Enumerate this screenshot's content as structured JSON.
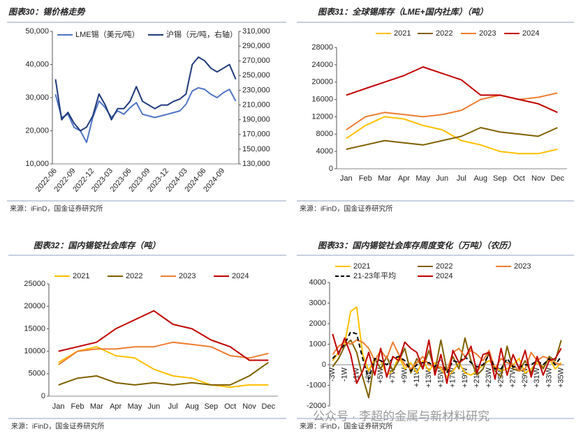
{
  "chart_data": [
    {
      "type": "line",
      "title": "图表30：锡价格走势",
      "source": "来源：iFinD，国金证券研究所",
      "legend": "top",
      "grid": false,
      "categories": [
        "2022-06",
        null,
        null,
        "2022-09",
        null,
        null,
        "2022-12",
        null,
        null,
        "2023-03",
        null,
        null,
        "2023-06",
        null,
        null,
        "2023-09",
        null,
        null,
        "2023-12",
        null,
        null,
        "2024-03",
        null,
        null,
        "2024-06",
        null,
        null,
        "2024-09",
        null,
        null
      ],
      "ylim": [
        10000,
        50000
      ],
      "yticks": [
        {
          "value": 10000,
          "label": "10,000"
        },
        {
          "value": 20000,
          "label": "20,000"
        },
        {
          "value": 30000,
          "label": "30,000"
        },
        {
          "value": 40000,
          "label": "40,000"
        },
        {
          "value": 50000,
          "label": "50,000"
        }
      ],
      "y2lim": [
        130000,
        310000
      ],
      "y2ticks": [
        {
          "value": 130000,
          "label": "130,000"
        },
        {
          "value": 150000,
          "label": "150,000"
        },
        {
          "value": 170000,
          "label": "170,000"
        },
        {
          "value": 190000,
          "label": "190,000"
        },
        {
          "value": 210000,
          "label": "210,000"
        },
        {
          "value": 230000,
          "label": "230,000"
        },
        {
          "value": 250000,
          "label": "250,000"
        },
        {
          "value": 270000,
          "label": "270,000"
        },
        {
          "value": 290000,
          "label": "290,000"
        },
        {
          "value": 310000,
          "label": "310,000"
        }
      ],
      "series": [
        {
          "name": "LME锡（美元/吨）",
          "color": "#4f74c4",
          "values": [
            31000,
            24000,
            25000,
            21000,
            20000,
            16500,
            24000,
            29000,
            27000,
            24000,
            26000,
            25000,
            27000,
            28500,
            25000,
            24500,
            24000,
            24500,
            25000,
            25500,
            26000,
            28000,
            32000,
            33000,
            32500,
            31000,
            30000,
            31500,
            32500,
            29000
          ]
        },
        {
          "name": "沪锡（元/吨，右轴）",
          "color": "#1f3a7a",
          "axis": "y2",
          "values": [
            245000,
            190000,
            200000,
            185000,
            175000,
            180000,
            195000,
            225000,
            210000,
            190000,
            205000,
            205000,
            215000,
            235000,
            215000,
            210000,
            205000,
            210000,
            210000,
            215000,
            218000,
            225000,
            265000,
            275000,
            270000,
            260000,
            255000,
            260000,
            265000,
            245000
          ]
        }
      ]
    },
    {
      "type": "line",
      "title": "图表31：全球锡库存（LME+国内社库）（吨）",
      "source": "来源：iFinD，国金证券研究所",
      "legend": "top",
      "grid": false,
      "categories": [
        "Jan",
        "Feb",
        "Mar",
        "Apr",
        "May",
        "Jun",
        "Jul",
        "Aug",
        "Sep",
        "Oct",
        "Nov",
        "Dec"
      ],
      "ylim": [
        0,
        28000
      ],
      "yticks": [
        0,
        4000,
        8000,
        12000,
        16000,
        20000,
        24000,
        28000
      ],
      "series": [
        {
          "name": "2021",
          "color": "#ffc000",
          "values": [
            7000,
            10000,
            12000,
            11500,
            10000,
            9000,
            6500,
            5500,
            4000,
            3500,
            3500,
            4500
          ]
        },
        {
          "name": "2022",
          "color": "#7f6000",
          "values": [
            4500,
            5500,
            6500,
            6000,
            5500,
            6500,
            7500,
            9500,
            8500,
            8000,
            7500,
            9500
          ]
        },
        {
          "name": "2023",
          "color": "#ed7d31",
          "values": [
            9000,
            12000,
            13000,
            12500,
            12000,
            12500,
            13500,
            16000,
            17000,
            16000,
            16500,
            17500
          ]
        },
        {
          "name": "2024",
          "color": "#c00000",
          "values": [
            17000,
            18500,
            20000,
            21500,
            23500,
            22000,
            20500,
            17000,
            17000,
            16000,
            15000,
            13000
          ]
        }
      ]
    },
    {
      "type": "line",
      "title": "图表32：国内锡锭社会库存（吨）",
      "source": "来源：iFinD，国金证券研究所",
      "legend": "top",
      "grid": false,
      "categories": [
        "Jan",
        "Feb",
        "Mar",
        "Apr",
        "May",
        "Jun",
        "Jul",
        "Aug",
        "Sep",
        "Oct",
        "Nov",
        "Dec"
      ],
      "ylim": [
        0,
        25000
      ],
      "yticks": [
        0,
        5000,
        10000,
        15000,
        20000,
        25000
      ],
      "series": [
        {
          "name": "2021",
          "color": "#ffc000",
          "values": [
            7500,
            10000,
            11000,
            9000,
            8500,
            6000,
            4500,
            4000,
            2500,
            2000,
            2500,
            2500
          ]
        },
        {
          "name": "2022",
          "color": "#7f6000",
          "values": [
            2500,
            4000,
            4500,
            3000,
            2500,
            3000,
            2500,
            3000,
            2500,
            2500,
            4500,
            7500
          ]
        },
        {
          "name": "2023",
          "color": "#ed7d31",
          "values": [
            7000,
            10000,
            10500,
            10500,
            11000,
            11000,
            12000,
            11500,
            11000,
            9000,
            8500,
            9500
          ]
        },
        {
          "name": "2024",
          "color": "#c00000",
          "values": [
            10000,
            11000,
            12000,
            15000,
            17000,
            19000,
            16000,
            15000,
            12500,
            11000,
            8000,
            8000
          ]
        }
      ]
    },
    {
      "type": "line",
      "title": "图表33：国内锡锭社会库存周度变化（万吨）（农历）",
      "source": "来源：iFinD，国金证券研究所",
      "legend": "top",
      "grid": false,
      "watermark": "公众号 · 李超的金属与新材料研究",
      "categories": [
        "-3W",
        null,
        "-1W",
        null,
        "+1W",
        null,
        "+3W",
        null,
        "+5W",
        null,
        "+7W",
        null,
        "+9W",
        null,
        "+11W",
        null,
        "+13W",
        null,
        "+15W",
        null,
        "+17W",
        null,
        "+19W",
        null,
        "+21W",
        null,
        "+23W",
        null,
        "+25W",
        null,
        "+27W",
        null,
        "+29W",
        null,
        "+31W",
        null,
        "+33W",
        null,
        "+35W"
      ],
      "ylim": [
        -2000,
        4000
      ],
      "yticks": [
        -2000,
        -1000,
        0,
        1000,
        2000,
        3000,
        4000
      ],
      "series": [
        {
          "name": "2021",
          "color": "#ffc000",
          "values": [
            200,
            600,
            1000,
            2600,
            2800,
            500,
            -300,
            300,
            200,
            -500,
            -300,
            400,
            -200,
            100,
            -400,
            200,
            -300,
            100,
            -200,
            -600,
            -300,
            100,
            -400,
            -500,
            -300,
            0,
            200,
            -100,
            -300,
            -200,
            0,
            300,
            -400,
            -200,
            100,
            -100,
            300,
            -200,
            100
          ]
        },
        {
          "name": "2022",
          "color": "#7f6000",
          "values": [
            -100,
            300,
            900,
            1200,
            600,
            -600,
            -1600,
            300,
            -200,
            400,
            -300,
            200,
            800,
            -400,
            300,
            -200,
            700,
            -300,
            1200,
            -300,
            400,
            -200,
            1300,
            200,
            -500,
            -200,
            600,
            -300,
            -600,
            900,
            -200,
            -300,
            200,
            -400,
            300,
            -200,
            400,
            200,
            1200
          ]
        },
        {
          "name": "2023",
          "color": "#ed7d31",
          "values": [
            500,
            900,
            1100,
            1000,
            1200,
            1100,
            800,
            200,
            700,
            300,
            1100,
            500,
            0,
            -200,
            100,
            400,
            0,
            -100,
            -100,
            -300,
            600,
            800,
            400,
            700,
            500,
            200,
            700,
            -200,
            300,
            100,
            0,
            -300,
            -200,
            600,
            200,
            400,
            300,
            100,
            0
          ]
        },
        {
          "name": "21-23年平均",
          "color": "#000000",
          "dash": true,
          "values": [
            300,
            600,
            1000,
            1600,
            1500,
            300,
            -700,
            300,
            200,
            0,
            300,
            400,
            200,
            -300,
            0,
            100,
            100,
            -100,
            300,
            -400,
            200,
            100,
            400,
            100,
            -100,
            0,
            500,
            -200,
            -200,
            300,
            -100,
            -100,
            0,
            0,
            200,
            0,
            300,
            0,
            400
          ]
        },
        {
          "name": "2024",
          "color": "#c00000",
          "values": [
            1500,
            500,
            1300,
            500,
            -900,
            -300,
            600,
            -500,
            800,
            -600,
            400,
            200,
            1100,
            800,
            600,
            -200,
            1200,
            -500,
            500,
            -900,
            700,
            100,
            300,
            900,
            -400,
            500,
            600,
            -700,
            800,
            -500,
            500,
            -200,
            700,
            -600,
            400,
            -500,
            200,
            300,
            800
          ]
        }
      ]
    }
  ]
}
